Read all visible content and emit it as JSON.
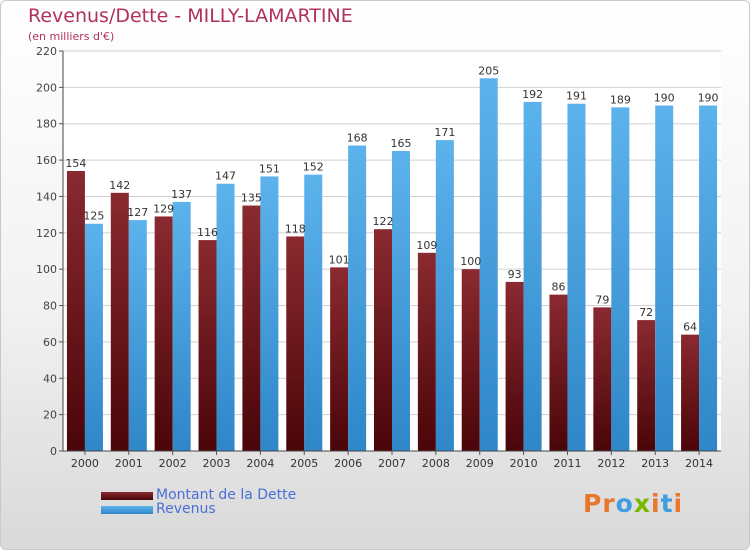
{
  "title": "Revenus/Dette - MILLY-LAMARTINE",
  "subtitle": "(en milliers d'€)",
  "legend": [
    {
      "label": "Montant de la Dette",
      "color": "#6b0f14"
    },
    {
      "label": "Revenus",
      "color": "#3f9ee0"
    }
  ],
  "logo": {
    "text": "Proxiti",
    "colors": [
      "#e8762d",
      "#e8762d",
      "#3f9ee0",
      "#7ab800",
      "#e8762d",
      "#3f9ee0",
      "#e8762d"
    ]
  },
  "chart_data": {
    "type": "bar",
    "title": "Revenus/Dette - MILLY-LAMARTINE",
    "ylabel": "",
    "xlabel": "",
    "ylim": [
      0,
      220
    ],
    "yticks": [
      0,
      20,
      40,
      60,
      80,
      100,
      120,
      140,
      160,
      180,
      200,
      220
    ],
    "grid": true,
    "legend_position": "bottom-left",
    "categories": [
      "2000",
      "2001",
      "2002",
      "2003",
      "2004",
      "2005",
      "2006",
      "2007",
      "2008",
      "2009",
      "2010",
      "2011",
      "2012",
      "2013",
      "2014"
    ],
    "series": [
      {
        "name": "Montant de la Dette",
        "color": "#6b0f14",
        "values": [
          154,
          142,
          129,
          116,
          135,
          118,
          101,
          122,
          109,
          100,
          93,
          86,
          79,
          72,
          64
        ]
      },
      {
        "name": "Revenus",
        "color": "#3f9ee0",
        "values": [
          125,
          127,
          137,
          147,
          151,
          152,
          168,
          165,
          171,
          205,
          192,
          191,
          189,
          190,
          190
        ]
      }
    ]
  }
}
